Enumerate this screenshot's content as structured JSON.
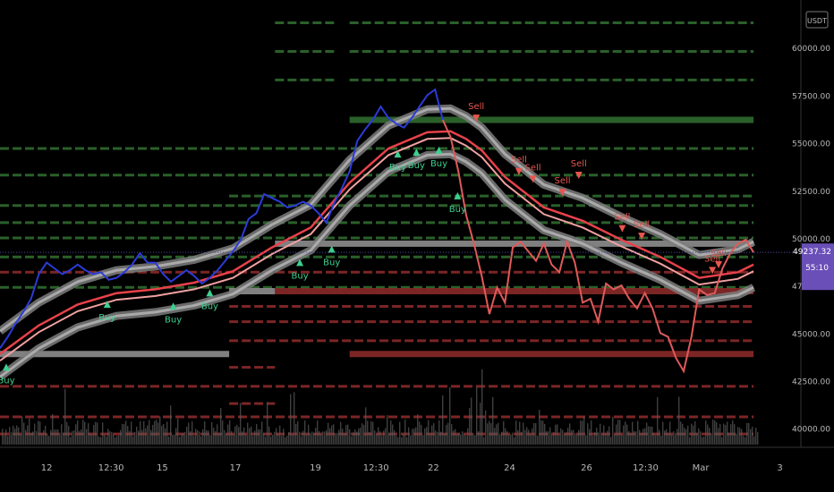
{
  "colors": {
    "background": "#000000",
    "price_up": "#2b3bd8",
    "price_down": "#e05a5a",
    "ribbon_outer": "#7d7d7d",
    "ribbon_inner": "#b0b0b0",
    "ma_fast": "#e8414a",
    "ma_slow": "#f0a0a0",
    "buy": "#3ecf8e",
    "sell": "#e8564f",
    "level_support": "#2f6b2f",
    "level_resistance": "#8a2a2a",
    "level_pivot": "#8e8e8e",
    "last_price_badge": "#6a4fb8",
    "axis_text": "#b8b8b8"
  },
  "chart_data": {
    "type": "line",
    "symbol_currency": "USDT",
    "last_price": "49237.32",
    "countdown": "55:10",
    "ylim": [
      39000,
      62500
    ],
    "yticks": [
      "60000.00",
      "57500.00",
      "55000.00",
      "52500.00",
      "50000.00",
      "47500.00",
      "45000.00",
      "42500.00",
      "40000.00"
    ],
    "ytick_values": [
      60000,
      57500,
      55000,
      52500,
      50000,
      47500,
      45000,
      42500,
      40000
    ],
    "xlim": [
      0,
      100
    ],
    "xticks": [
      "12",
      "12:30",
      "15",
      "17",
      "19",
      "12:30",
      "22",
      "24",
      "26",
      "12:30",
      "Mar",
      "3"
    ],
    "xtick_positions": [
      6.0,
      14.3,
      20.9,
      30.3,
      40.6,
      48.4,
      55.8,
      65.6,
      75.5,
      83.1,
      90.2,
      100.4
    ],
    "price_series": {
      "name": "",
      "x": [
        0,
        1,
        2,
        3,
        4,
        5,
        6,
        7,
        8,
        9,
        10,
        11,
        12,
        13,
        14,
        15,
        16,
        17,
        18,
        19,
        20,
        21,
        22,
        23,
        24,
        25,
        26,
        27,
        28,
        29,
        30,
        31,
        32,
        33,
        34,
        35,
        36,
        37,
        38,
        39,
        40,
        41,
        42,
        43,
        44,
        45,
        46,
        47,
        48,
        49,
        50,
        51,
        52,
        53,
        54,
        55,
        56,
        57,
        58,
        59,
        60,
        61,
        62,
        63,
        64,
        65,
        66,
        67,
        68,
        69,
        70,
        71,
        72,
        73,
        74,
        75,
        76,
        77,
        78,
        79,
        80,
        81,
        82,
        83,
        84,
        85,
        86,
        87,
        88,
        89,
        90,
        91,
        92,
        93,
        94,
        95,
        96,
        97
      ],
      "y": [
        44200,
        44800,
        45500,
        46100,
        46800,
        48100,
        48700,
        48400,
        48100,
        48300,
        48600,
        48300,
        48100,
        48200,
        47800,
        47900,
        48200,
        48600,
        49200,
        48700,
        48700,
        48100,
        47700,
        48000,
        48300,
        48000,
        47600,
        47900,
        48300,
        48800,
        49300,
        49900,
        51000,
        51300,
        52300,
        52100,
        51900,
        51600,
        51700,
        51900,
        51700,
        51300,
        50800,
        51800,
        52600,
        53500,
        55100,
        55700,
        56200,
        56900,
        56300,
        56000,
        55800,
        56300,
        56900,
        57500,
        57800,
        56200,
        55300,
        53500,
        51200,
        49700,
        48000,
        46000,
        47400,
        46600,
        49500,
        49800,
        49300,
        48800,
        49700,
        48600,
        48200,
        49800,
        48700,
        46600,
        46800,
        45600,
        47600,
        47300,
        47500,
        46800,
        46300,
        47100,
        46300,
        45000,
        44800,
        43700,
        43000,
        44800,
        47300,
        47000,
        47100,
        48400,
        49200,
        49700,
        49900,
        49237
      ]
    },
    "ma_series": [
      {
        "name": "",
        "x": [
          0,
          5,
          10,
          15,
          20,
          25,
          30,
          35,
          40,
          45,
          50,
          55,
          58,
          60,
          62,
          65,
          70,
          75,
          80,
          85,
          90,
          95,
          97
        ],
        "y": [
          43900,
          45400,
          46500,
          47100,
          47300,
          47650,
          48250,
          49500,
          50550,
          52900,
          54700,
          55550,
          55600,
          55200,
          54600,
          53200,
          51600,
          50900,
          49900,
          49000,
          47900,
          48200,
          48600
        ]
      },
      {
        "name": "",
        "x": [
          0,
          5,
          10,
          15,
          20,
          25,
          30,
          35,
          40,
          45,
          50,
          55,
          58,
          60,
          62,
          65,
          70,
          75,
          80,
          85,
          90,
          95,
          97
        ],
        "y": [
          43550,
          45050,
          46150,
          46750,
          46950,
          47300,
          47900,
          49150,
          50200,
          52550,
          54350,
          55200,
          55250,
          54850,
          54250,
          52850,
          51250,
          50550,
          49550,
          48650,
          47550,
          47850,
          48250
        ]
      }
    ],
    "ribbon_offset": 1200,
    "levels": [
      {
        "y": 61300,
        "x0": 35.4,
        "x1": 43.2,
        "kind": "support"
      },
      {
        "y": 61300,
        "x0": 45.0,
        "x1": 97.0,
        "kind": "support"
      },
      {
        "y": 59800,
        "x0": 35.4,
        "x1": 43.2,
        "kind": "support"
      },
      {
        "y": 59800,
        "x0": 45.0,
        "x1": 97.0,
        "kind": "support"
      },
      {
        "y": 58300,
        "x0": 35.4,
        "x1": 43.2,
        "kind": "support"
      },
      {
        "y": 58300,
        "x0": 45.0,
        "x1": 97.0,
        "kind": "support"
      },
      {
        "y": 56200,
        "x0": 45.0,
        "x1": 97.0,
        "kind": "support_strong"
      },
      {
        "y": 54700,
        "x0": 0,
        "x1": 97.0,
        "kind": "support"
      },
      {
        "y": 53300,
        "x0": 0,
        "x1": 97.0,
        "kind": "support"
      },
      {
        "y": 52200,
        "x0": 29.5,
        "x1": 97.0,
        "kind": "support"
      },
      {
        "y": 51700,
        "x0": 0,
        "x1": 97.0,
        "kind": "support"
      },
      {
        "y": 50800,
        "x0": 0,
        "x1": 97.0,
        "kind": "support"
      },
      {
        "y": 50000,
        "x0": 0,
        "x1": 97.0,
        "kind": "support"
      },
      {
        "y": 49700,
        "x0": 35.4,
        "x1": 97.0,
        "kind": "pivot"
      },
      {
        "y": 49000,
        "x0": 0,
        "x1": 97.0,
        "kind": "support"
      },
      {
        "y": 48200,
        "x0": 0,
        "x1": 97.0,
        "kind": "resistance"
      },
      {
        "y": 47400,
        "x0": 0,
        "x1": 97.0,
        "kind": "support"
      },
      {
        "y": 47200,
        "x0": 29.5,
        "x1": 35.4,
        "kind": "pivot"
      },
      {
        "y": 47200,
        "x0": 35.4,
        "x1": 97.0,
        "kind": "resistance_strong"
      },
      {
        "y": 46400,
        "x0": 29.5,
        "x1": 97.0,
        "kind": "resistance"
      },
      {
        "y": 45600,
        "x0": 29.5,
        "x1": 97.0,
        "kind": "resistance"
      },
      {
        "y": 44600,
        "x0": 29.5,
        "x1": 97.0,
        "kind": "resistance"
      },
      {
        "y": 43900,
        "x0": 0,
        "x1": 29.5,
        "kind": "pivot"
      },
      {
        "y": 43900,
        "x0": 45.0,
        "x1": 97.0,
        "kind": "resistance_strong"
      },
      {
        "y": 43200,
        "x0": 29.5,
        "x1": 35.4,
        "kind": "resistance"
      },
      {
        "y": 42200,
        "x0": 0,
        "x1": 97.0,
        "kind": "resistance"
      },
      {
        "y": 41300,
        "x0": 29.5,
        "x1": 35.4,
        "kind": "resistance"
      },
      {
        "y": 40600,
        "x0": 0,
        "x1": 97.0,
        "kind": "resistance"
      },
      {
        "y": 39700,
        "x0": 0,
        "x1": 97.0,
        "kind": "resistance"
      }
    ],
    "signals": [
      {
        "type": "Buy",
        "x": 0.8,
        "y": 43400
      },
      {
        "type": "Buy",
        "x": 13.8,
        "y": 46700
      },
      {
        "type": "Buy",
        "x": 22.3,
        "y": 46600
      },
      {
        "type": "Buy",
        "x": 27.0,
        "y": 47300
      },
      {
        "type": "Buy",
        "x": 38.6,
        "y": 48900
      },
      {
        "type": "Buy",
        "x": 42.7,
        "y": 49600
      },
      {
        "type": "Buy",
        "x": 51.2,
        "y": 54600
      },
      {
        "type": "Buy",
        "x": 53.6,
        "y": 54700
      },
      {
        "type": "Buy",
        "x": 56.5,
        "y": 54800
      },
      {
        "type": "Buy",
        "x": 58.9,
        "y": 52400
      },
      {
        "type": "Sell",
        "x": 61.3,
        "y": 56100
      },
      {
        "type": "Sell",
        "x": 66.8,
        "y": 53300
      },
      {
        "type": "Sell",
        "x": 68.6,
        "y": 52900
      },
      {
        "type": "Sell",
        "x": 72.4,
        "y": 52200
      },
      {
        "type": "Sell",
        "x": 74.5,
        "y": 53100
      },
      {
        "type": "Sell",
        "x": 80.1,
        "y": 50300
      },
      {
        "type": "Sell",
        "x": 82.6,
        "y": 49900
      },
      {
        "type": "Sell",
        "x": 91.7,
        "y": 48100
      },
      {
        "type": "Sell",
        "x": 92.5,
        "y": 48400
      }
    ],
    "volume_max": 100,
    "volume_note": "volume histogram at the bottom of the chart pane"
  }
}
